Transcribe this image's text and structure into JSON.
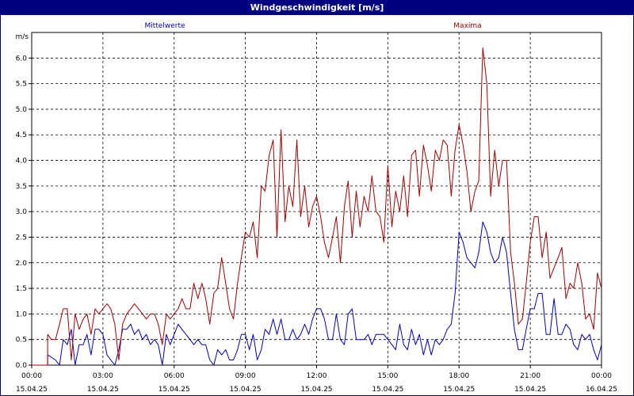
{
  "window": {
    "title": "Windgeschwindigkeit [m/s]"
  },
  "chart_data": {
    "type": "line",
    "title": "Windgeschwindigkeit [m/s]",
    "ylabel": "m/s",
    "ylim": [
      0,
      6.5
    ],
    "y_ticks": [
      "0.0",
      "0.5",
      "1.0",
      "1.5",
      "2.0",
      "2.5",
      "3.0",
      "3.5",
      "4.0",
      "4.5",
      "5.0",
      "5.5",
      "6.0"
    ],
    "x_ticks": [
      {
        "time": "00:00",
        "date": "15.04.25"
      },
      {
        "time": "03:00",
        "date": "15.04.25"
      },
      {
        "time": "06:00",
        "date": "15.04.25"
      },
      {
        "time": "09:00",
        "date": "15.04.25"
      },
      {
        "time": "12:00",
        "date": "15.04.25"
      },
      {
        "time": "15:00",
        "date": "15.04.25"
      },
      {
        "time": "18:00",
        "date": "15.04.25"
      },
      {
        "time": "21:00",
        "date": "15.04.25"
      },
      {
        "time": "00:00",
        "date": "16.04.25"
      }
    ],
    "x_range_hours": [
      0,
      24
    ],
    "grid": true,
    "series": [
      {
        "name": "Mittelwerte",
        "color": "#0000c0",
        "points": [
          [
            0,
            0
          ],
          [
            0.67,
            0
          ],
          [
            0.67,
            0.2
          ],
          [
            1,
            0.1
          ],
          [
            1.17,
            0
          ],
          [
            1.33,
            0.5
          ],
          [
            1.5,
            0.4
          ],
          [
            1.67,
            0.7
          ],
          [
            1.83,
            0
          ],
          [
            2,
            0.4
          ],
          [
            2.17,
            0.4
          ],
          [
            2.33,
            0.6
          ],
          [
            2.5,
            0.2
          ],
          [
            2.67,
            0.7
          ],
          [
            2.83,
            0.7
          ],
          [
            3,
            0.6
          ],
          [
            3.17,
            0.2
          ],
          [
            3.33,
            0.1
          ],
          [
            3.5,
            0
          ],
          [
            3.67,
            0.3
          ],
          [
            3.83,
            0.7
          ],
          [
            4,
            0.7
          ],
          [
            4.17,
            0.8
          ],
          [
            4.33,
            0.6
          ],
          [
            4.5,
            0.7
          ],
          [
            4.67,
            0.5
          ],
          [
            4.83,
            0.6
          ],
          [
            5,
            0.4
          ],
          [
            5.17,
            0.5
          ],
          [
            5.33,
            0.4
          ],
          [
            5.5,
            0
          ],
          [
            5.67,
            0.6
          ],
          [
            5.83,
            0.4
          ],
          [
            6,
            0.6
          ],
          [
            6.17,
            0.8
          ],
          [
            6.33,
            0.7
          ],
          [
            6.5,
            0.6
          ],
          [
            6.67,
            0.5
          ],
          [
            6.83,
            0.4
          ],
          [
            7,
            0.5
          ],
          [
            7.17,
            0.4
          ],
          [
            7.33,
            0.4
          ],
          [
            7.5,
            0.1
          ],
          [
            7.67,
            0
          ],
          [
            7.83,
            0.3
          ],
          [
            8,
            0.2
          ],
          [
            8.17,
            0.3
          ],
          [
            8.33,
            0.1
          ],
          [
            8.5,
            0.1
          ],
          [
            8.67,
            0.3
          ],
          [
            8.83,
            0.6
          ],
          [
            9,
            0.6
          ],
          [
            9.17,
            0.3
          ],
          [
            9.33,
            0.6
          ],
          [
            9.5,
            0.1
          ],
          [
            9.67,
            0.3
          ],
          [
            9.83,
            0.7
          ],
          [
            10,
            0.6
          ],
          [
            10.17,
            0.9
          ],
          [
            10.33,
            0.6
          ],
          [
            10.5,
            0.9
          ],
          [
            10.67,
            0.5
          ],
          [
            10.83,
            0.5
          ],
          [
            11,
            0.7
          ],
          [
            11.17,
            0.5
          ],
          [
            11.33,
            0.6
          ],
          [
            11.5,
            0.8
          ],
          [
            11.67,
            0.6
          ],
          [
            11.83,
            0.9
          ],
          [
            12,
            1.1
          ],
          [
            12.17,
            1.1
          ],
          [
            12.33,
            0.9
          ],
          [
            12.5,
            0.5
          ],
          [
            12.67,
            0.5
          ],
          [
            12.83,
            1
          ],
          [
            13,
            0.5
          ],
          [
            13.17,
            0.4
          ],
          [
            13.33,
            1
          ],
          [
            13.5,
            1.1
          ],
          [
            13.67,
            0.5
          ],
          [
            13.83,
            0.5
          ],
          [
            14,
            0.5
          ],
          [
            14.17,
            0.6
          ],
          [
            14.33,
            0.4
          ],
          [
            14.5,
            0.6
          ],
          [
            14.67,
            0.6
          ],
          [
            14.83,
            0.6
          ],
          [
            15,
            0.5
          ],
          [
            15.17,
            0.4
          ],
          [
            15.33,
            0.3
          ],
          [
            15.5,
            0.8
          ],
          [
            15.67,
            0.4
          ],
          [
            15.83,
            0.3
          ],
          [
            16,
            0.7
          ],
          [
            16.17,
            0.4
          ],
          [
            16.33,
            0.6
          ],
          [
            16.5,
            0.2
          ],
          [
            16.67,
            0.5
          ],
          [
            16.83,
            0.2
          ],
          [
            17,
            0.5
          ],
          [
            17.17,
            0.4
          ],
          [
            17.33,
            0.5
          ],
          [
            17.5,
            0.7
          ],
          [
            17.67,
            0.8
          ],
          [
            17.83,
            1.4
          ],
          [
            18,
            2.6
          ],
          [
            18.17,
            2.4
          ],
          [
            18.33,
            2.1
          ],
          [
            18.5,
            2
          ],
          [
            18.67,
            1.9
          ],
          [
            18.83,
            2.2
          ],
          [
            19,
            2.8
          ],
          [
            19.17,
            2.6
          ],
          [
            19.33,
            2.2
          ],
          [
            19.5,
            2
          ],
          [
            19.67,
            2.1
          ],
          [
            19.83,
            2.5
          ],
          [
            20,
            2.2
          ],
          [
            20.17,
            1.4
          ],
          [
            20.33,
            0.7
          ],
          [
            20.5,
            0.3
          ],
          [
            20.67,
            0.3
          ],
          [
            20.83,
            0.7
          ],
          [
            21,
            1.1
          ],
          [
            21.17,
            1.1
          ],
          [
            21.33,
            1.4
          ],
          [
            21.5,
            1.4
          ],
          [
            21.67,
            0.6
          ],
          [
            21.83,
            0.6
          ],
          [
            22,
            1.3
          ],
          [
            22.17,
            0.6
          ],
          [
            22.33,
            0.6
          ],
          [
            22.5,
            0.8
          ],
          [
            22.67,
            0.7
          ],
          [
            22.83,
            0.4
          ],
          [
            23,
            0.3
          ],
          [
            23.17,
            0.6
          ],
          [
            23.33,
            0.5
          ],
          [
            23.5,
            0.6
          ],
          [
            23.67,
            0.3
          ],
          [
            23.83,
            0.1
          ],
          [
            24,
            0.4
          ]
        ]
      },
      {
        "name": "Maxima",
        "color": "#a00000",
        "points": [
          [
            0,
            0
          ],
          [
            0.67,
            0
          ],
          [
            0.67,
            0.6
          ],
          [
            0.83,
            0.5
          ],
          [
            1,
            0.5
          ],
          [
            1.17,
            0.8
          ],
          [
            1.33,
            1.1
          ],
          [
            1.5,
            1.1
          ],
          [
            1.67,
            0.1
          ],
          [
            1.83,
            1
          ],
          [
            2,
            0.7
          ],
          [
            2.17,
            0.9
          ],
          [
            2.33,
            1
          ],
          [
            2.5,
            0.6
          ],
          [
            2.67,
            1.1
          ],
          [
            2.83,
            1
          ],
          [
            3,
            1.1
          ],
          [
            3.17,
            1.2
          ],
          [
            3.33,
            1.1
          ],
          [
            3.5,
            0.8
          ],
          [
            3.67,
            0.1
          ],
          [
            3.83,
            0.8
          ],
          [
            4,
            1
          ],
          [
            4.17,
            1.1
          ],
          [
            4.33,
            1.2
          ],
          [
            4.5,
            1.1
          ],
          [
            4.67,
            1
          ],
          [
            4.83,
            0.9
          ],
          [
            5,
            1
          ],
          [
            5.17,
            1
          ],
          [
            5.33,
            0.8
          ],
          [
            5.5,
            0.4
          ],
          [
            5.67,
            1
          ],
          [
            5.83,
            0.9
          ],
          [
            6,
            1
          ],
          [
            6.17,
            1.1
          ],
          [
            6.33,
            1.3
          ],
          [
            6.5,
            1.1
          ],
          [
            6.67,
            1.1
          ],
          [
            6.83,
            1.6
          ],
          [
            7,
            1.3
          ],
          [
            7.17,
            1.6
          ],
          [
            7.33,
            1.3
          ],
          [
            7.5,
            0.8
          ],
          [
            7.67,
            1.4
          ],
          [
            7.83,
            1.5
          ],
          [
            8,
            2.1
          ],
          [
            8.17,
            1.6
          ],
          [
            8.33,
            1.1
          ],
          [
            8.5,
            0.9
          ],
          [
            8.67,
            1.6
          ],
          [
            8.83,
            2.1
          ],
          [
            9,
            2.6
          ],
          [
            9.17,
            2.5
          ],
          [
            9.33,
            2.8
          ],
          [
            9.5,
            2.1
          ],
          [
            9.67,
            3.5
          ],
          [
            9.83,
            3.4
          ],
          [
            10,
            4.1
          ],
          [
            10.17,
            4.4
          ],
          [
            10.33,
            2.5
          ],
          [
            10.5,
            4.6
          ],
          [
            10.67,
            2.8
          ],
          [
            10.83,
            3.5
          ],
          [
            11,
            3.1
          ],
          [
            11.17,
            4.4
          ],
          [
            11.33,
            2.9
          ],
          [
            11.5,
            3.5
          ],
          [
            11.67,
            2.7
          ],
          [
            11.83,
            3.1
          ],
          [
            12,
            3.3
          ],
          [
            12.17,
            2.9
          ],
          [
            12.33,
            2.4
          ],
          [
            12.5,
            2.1
          ],
          [
            12.67,
            2.5
          ],
          [
            12.83,
            2.9
          ],
          [
            13,
            2
          ],
          [
            13.17,
            3.1
          ],
          [
            13.33,
            3.6
          ],
          [
            13.5,
            2.5
          ],
          [
            13.67,
            3.4
          ],
          [
            13.83,
            2.7
          ],
          [
            14,
            3.3
          ],
          [
            14.17,
            3
          ],
          [
            14.33,
            3.7
          ],
          [
            14.5,
            3
          ],
          [
            14.67,
            2.9
          ],
          [
            14.83,
            2.4
          ],
          [
            15,
            3.9
          ],
          [
            15.17,
            2.7
          ],
          [
            15.33,
            3.4
          ],
          [
            15.5,
            3
          ],
          [
            15.67,
            3.7
          ],
          [
            15.83,
            2.9
          ],
          [
            16,
            4.1
          ],
          [
            16.17,
            4.2
          ],
          [
            16.33,
            3.3
          ],
          [
            16.5,
            4.3
          ],
          [
            16.67,
            3.9
          ],
          [
            16.83,
            3.4
          ],
          [
            17,
            4.2
          ],
          [
            17.17,
            4
          ],
          [
            17.33,
            4.4
          ],
          [
            17.5,
            4.3
          ],
          [
            17.67,
            3.3
          ],
          [
            17.83,
            4.2
          ],
          [
            18,
            4.7
          ],
          [
            18.17,
            4.3
          ],
          [
            18.33,
            3.8
          ],
          [
            18.5,
            3
          ],
          [
            18.67,
            3.4
          ],
          [
            18.83,
            3.6
          ],
          [
            19,
            6.2
          ],
          [
            19.17,
            5.5
          ],
          [
            19.33,
            3.3
          ],
          [
            19.5,
            4.2
          ],
          [
            19.67,
            3.5
          ],
          [
            19.83,
            4
          ],
          [
            20,
            4
          ],
          [
            20.17,
            2.2
          ],
          [
            20.33,
            1.6
          ],
          [
            20.5,
            0.8
          ],
          [
            20.67,
            0.9
          ],
          [
            20.83,
            1.6
          ],
          [
            21,
            2.4
          ],
          [
            21.17,
            2.9
          ],
          [
            21.33,
            2.9
          ],
          [
            21.5,
            2.1
          ],
          [
            21.67,
            2.6
          ],
          [
            21.83,
            1.7
          ],
          [
            22,
            1.9
          ],
          [
            22.17,
            2.1
          ],
          [
            22.33,
            2.3
          ],
          [
            22.5,
            1.3
          ],
          [
            22.67,
            1.6
          ],
          [
            22.83,
            1.5
          ],
          [
            23,
            2
          ],
          [
            23.17,
            1.6
          ],
          [
            23.33,
            0.9
          ],
          [
            23.5,
            1
          ],
          [
            23.67,
            0.7
          ],
          [
            23.83,
            1.8
          ],
          [
            24,
            1.5
          ]
        ]
      }
    ]
  }
}
